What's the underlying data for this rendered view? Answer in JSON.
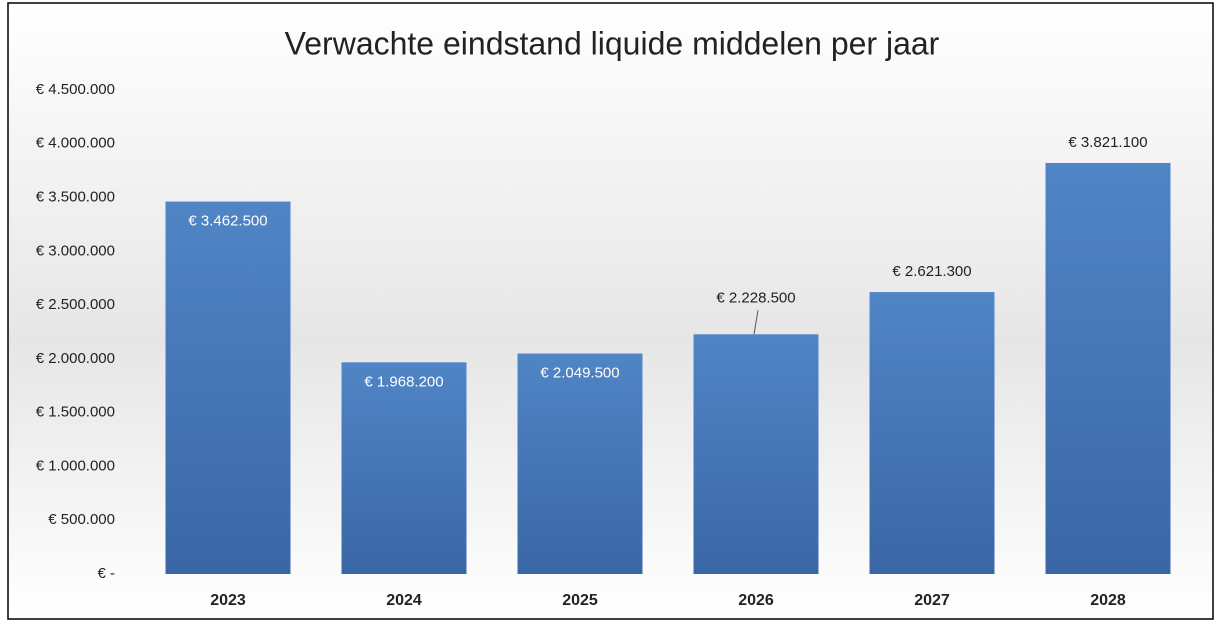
{
  "chart_data": {
    "type": "bar",
    "title": "Verwachte eindstand liquide middelen per jaar",
    "categories": [
      "2023",
      "2024",
      "2025",
      "2026",
      "2027",
      "2028"
    ],
    "values": [
      3462500,
      1968200,
      2049500,
      2228500,
      2621300,
      3821100
    ],
    "value_labels": [
      "€ 3.462.500",
      "€ 1.968.200",
      "€ 2.049.500",
      "€ 2.228.500",
      "€ 2.621.300",
      "€ 3.821.100"
    ],
    "color": "#4a7ebf",
    "ylim": [
      0,
      4500000
    ],
    "yticks": [
      {
        "value": 0,
        "label": "€ -"
      },
      {
        "value": 500000,
        "label": "€ 500.000"
      },
      {
        "value": 1000000,
        "label": "€ 1.000.000"
      },
      {
        "value": 1500000,
        "label": "€ 1.500.000"
      },
      {
        "value": 2000000,
        "label": "€ 2.000.000"
      },
      {
        "value": 2500000,
        "label": "€ 2.500.000"
      },
      {
        "value": 3000000,
        "label": "€ 3.000.000"
      },
      {
        "value": 3500000,
        "label": "€ 3.500.000"
      },
      {
        "value": 4000000,
        "label": "€ 4.000.000"
      },
      {
        "value": 4500000,
        "label": "€ 4.500.000"
      }
    ],
    "grid": false
  }
}
